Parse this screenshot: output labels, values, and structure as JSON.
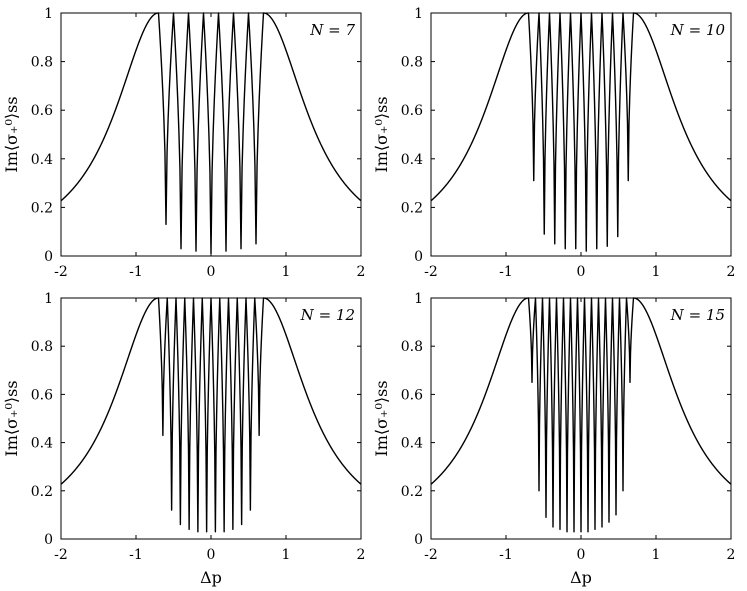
{
  "chart_data": [
    {
      "type": "line",
      "label": "N = 7",
      "N": 7,
      "xlabel": "",
      "ylabel": "Im⟨σ₊⁰⟩ss",
      "xlim": [
        -2,
        2
      ],
      "ylim": [
        0,
        1
      ],
      "xticks": [
        "-2",
        "-1",
        "0",
        "1",
        "2"
      ],
      "yticks": [
        "0",
        "0.2",
        "0.4",
        "0.6",
        "0.8",
        "1"
      ],
      "series": [
        {
          "color": "#000000",
          "x_range": [
            -2,
            2
          ],
          "band_edge": 0.7,
          "left_end_value": 0.22,
          "right_end_value": 0.22,
          "dip_minima": [
            0.13,
            0.03,
            0.02,
            0.01,
            0.02,
            0.03,
            0.05
          ]
        }
      ]
    },
    {
      "type": "line",
      "label": "N = 10",
      "N": 10,
      "xlabel": "",
      "ylabel": "Im⟨σ₊⁰⟩ss",
      "xlim": [
        -2,
        2
      ],
      "ylim": [
        0,
        1
      ],
      "xticks": [
        "-2",
        "-1",
        "0",
        "1",
        "2"
      ],
      "yticks": [
        "0",
        "0.2",
        "0.4",
        "0.6",
        "0.8",
        "1"
      ],
      "series": [
        {
          "color": "#000000",
          "x_range": [
            -2,
            2
          ],
          "band_edge": 0.7,
          "left_end_value": 0.22,
          "right_end_value": 0.22,
          "dip_minima": [
            0.31,
            0.09,
            0.05,
            0.03,
            0.03,
            0.02,
            0.03,
            0.04,
            0.08,
            0.31
          ]
        }
      ]
    },
    {
      "type": "line",
      "label": "N = 12",
      "N": 12,
      "xlabel": "Δp",
      "ylabel": "Im⟨σ₊⁰⟩ss",
      "xlim": [
        -2,
        2
      ],
      "ylim": [
        0,
        1
      ],
      "xticks": [
        "-2",
        "-1",
        "0",
        "1",
        "2"
      ],
      "yticks": [
        "0",
        "0.2",
        "0.4",
        "0.6",
        "0.8",
        "1"
      ],
      "series": [
        {
          "color": "#000000",
          "x_range": [
            -2,
            2
          ],
          "band_edge": 0.7,
          "left_end_value": 0.22,
          "right_end_value": 0.22,
          "dip_minima": [
            0.43,
            0.12,
            0.06,
            0.04,
            0.03,
            0.03,
            0.03,
            0.03,
            0.04,
            0.06,
            0.12,
            0.43
          ]
        }
      ]
    },
    {
      "type": "line",
      "label": "N = 15",
      "N": 15,
      "xlabel": "Δp",
      "ylabel": "Im⟨σ₊⁰⟩ss",
      "xlim": [
        -2,
        2
      ],
      "ylim": [
        0,
        1
      ],
      "xticks": [
        "-2",
        "-1",
        "0",
        "1",
        "2"
      ],
      "yticks": [
        "0",
        "0.2",
        "0.4",
        "0.6",
        "0.8",
        "1"
      ],
      "series": [
        {
          "color": "#000000",
          "x_range": [
            -2,
            2
          ],
          "band_edge": 0.7,
          "left_end_value": 0.22,
          "right_end_value": 0.22,
          "dip_minima": [
            0.65,
            0.2,
            0.09,
            0.05,
            0.04,
            0.03,
            0.03,
            0.03,
            0.03,
            0.04,
            0.05,
            0.07,
            0.1,
            0.2,
            0.65
          ]
        }
      ]
    }
  ]
}
